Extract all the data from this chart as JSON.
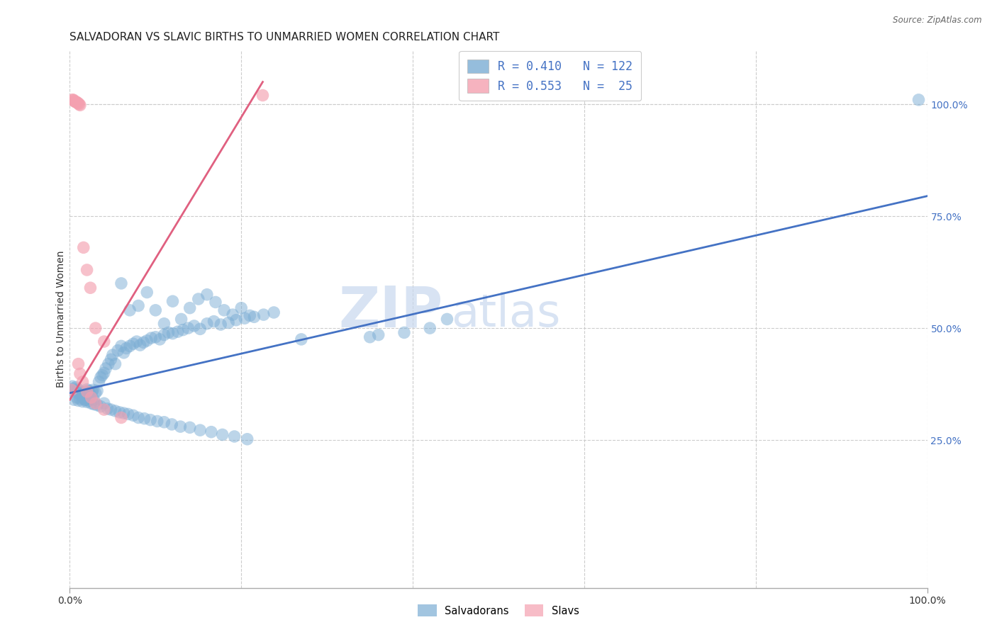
{
  "title": "SALVADORAN VS SLAVIC BIRTHS TO UNMARRIED WOMEN CORRELATION CHART",
  "source": "Source: ZipAtlas.com",
  "ylabel": "Births to Unmarried Women",
  "xlim": [
    0,
    1
  ],
  "ylim": [
    -0.08,
    1.12
  ],
  "ytick_labels": [
    "25.0%",
    "50.0%",
    "75.0%",
    "100.0%"
  ],
  "ytick_positions": [
    0.25,
    0.5,
    0.75,
    1.0
  ],
  "blue_R": 0.41,
  "blue_N": 122,
  "pink_R": 0.553,
  "pink_N": 25,
  "legend_text_blue": "R = 0.410   N = 122",
  "legend_text_pink": "R = 0.553   N =  25",
  "blue_color": "#7BADD4",
  "pink_color": "#F4A0B0",
  "blue_line_color": "#4472C4",
  "pink_line_color": "#E06080",
  "watermark_zip": "ZIP",
  "watermark_atlas": "atlas",
  "background_color": "#FFFFFF",
  "grid_color": "#CCCCCC",
  "title_fontsize": 11,
  "axis_label_fontsize": 10,
  "tick_label_fontsize": 10,
  "blue_line_x": [
    0.0,
    1.0
  ],
  "blue_line_y": [
    0.355,
    0.795
  ],
  "pink_line_x": [
    0.0,
    0.225
  ],
  "pink_line_y": [
    0.34,
    1.05
  ],
  "blue_x": [
    0.003,
    0.005,
    0.006,
    0.007,
    0.008,
    0.009,
    0.01,
    0.011,
    0.012,
    0.013,
    0.014,
    0.015,
    0.016,
    0.017,
    0.018,
    0.019,
    0.02,
    0.021,
    0.022,
    0.023,
    0.024,
    0.025,
    0.026,
    0.027,
    0.028,
    0.03,
    0.032,
    0.034,
    0.036,
    0.038,
    0.04,
    0.042,
    0.045,
    0.048,
    0.05,
    0.053,
    0.056,
    0.06,
    0.063,
    0.066,
    0.07,
    0.074,
    0.078,
    0.082,
    0.086,
    0.09,
    0.095,
    0.1,
    0.105,
    0.11,
    0.115,
    0.12,
    0.126,
    0.132,
    0.138,
    0.145,
    0.152,
    0.16,
    0.168,
    0.176,
    0.185,
    0.194,
    0.204,
    0.215,
    0.226,
    0.238,
    0.005,
    0.008,
    0.01,
    0.012,
    0.015,
    0.018,
    0.02,
    0.022,
    0.025,
    0.028,
    0.032,
    0.036,
    0.04,
    0.044,
    0.048,
    0.053,
    0.058,
    0.063,
    0.068,
    0.074,
    0.08,
    0.087,
    0.094,
    0.102,
    0.11,
    0.119,
    0.129,
    0.14,
    0.152,
    0.165,
    0.178,
    0.192,
    0.207,
    0.06,
    0.07,
    0.08,
    0.09,
    0.1,
    0.11,
    0.12,
    0.13,
    0.14,
    0.15,
    0.16,
    0.17,
    0.18,
    0.19,
    0.2,
    0.21,
    0.27,
    0.35,
    0.36,
    0.39,
    0.42,
    0.44,
    0.99
  ],
  "blue_y": [
    0.37,
    0.365,
    0.362,
    0.368,
    0.36,
    0.355,
    0.363,
    0.358,
    0.356,
    0.352,
    0.348,
    0.35,
    0.346,
    0.344,
    0.34,
    0.358,
    0.363,
    0.355,
    0.36,
    0.348,
    0.352,
    0.345,
    0.358,
    0.362,
    0.34,
    0.355,
    0.36,
    0.38,
    0.39,
    0.395,
    0.4,
    0.41,
    0.42,
    0.43,
    0.44,
    0.42,
    0.45,
    0.46,
    0.445,
    0.455,
    0.46,
    0.465,
    0.47,
    0.462,
    0.468,
    0.472,
    0.478,
    0.48,
    0.475,
    0.485,
    0.49,
    0.488,
    0.492,
    0.496,
    0.5,
    0.505,
    0.498,
    0.51,
    0.515,
    0.508,
    0.512,
    0.518,
    0.522,
    0.525,
    0.53,
    0.535,
    0.34,
    0.345,
    0.338,
    0.342,
    0.336,
    0.34,
    0.335,
    0.338,
    0.332,
    0.33,
    0.328,
    0.325,
    0.332,
    0.32,
    0.318,
    0.315,
    0.312,
    0.31,
    0.308,
    0.305,
    0.3,
    0.298,
    0.295,
    0.292,
    0.29,
    0.285,
    0.28,
    0.278,
    0.272,
    0.268,
    0.262,
    0.258,
    0.252,
    0.6,
    0.54,
    0.55,
    0.58,
    0.54,
    0.51,
    0.56,
    0.52,
    0.545,
    0.565,
    0.575,
    0.558,
    0.54,
    0.53,
    0.545,
    0.528,
    0.475,
    0.48,
    0.485,
    0.49,
    0.5,
    0.52,
    1.01
  ],
  "pink_x": [
    0.003,
    0.004,
    0.005,
    0.006,
    0.007,
    0.008,
    0.009,
    0.01,
    0.011,
    0.012,
    0.016,
    0.02,
    0.024,
    0.03,
    0.04,
    0.01,
    0.012,
    0.015,
    0.02,
    0.025,
    0.03,
    0.04,
    0.06,
    0.225,
    0.002
  ],
  "pink_y": [
    1.01,
    1.01,
    1.008,
    1.006,
    1.005,
    1.005,
    1.003,
    1.002,
    1.0,
    0.998,
    0.68,
    0.63,
    0.59,
    0.5,
    0.47,
    0.42,
    0.398,
    0.38,
    0.358,
    0.345,
    0.332,
    0.318,
    0.3,
    1.02,
    0.362
  ]
}
